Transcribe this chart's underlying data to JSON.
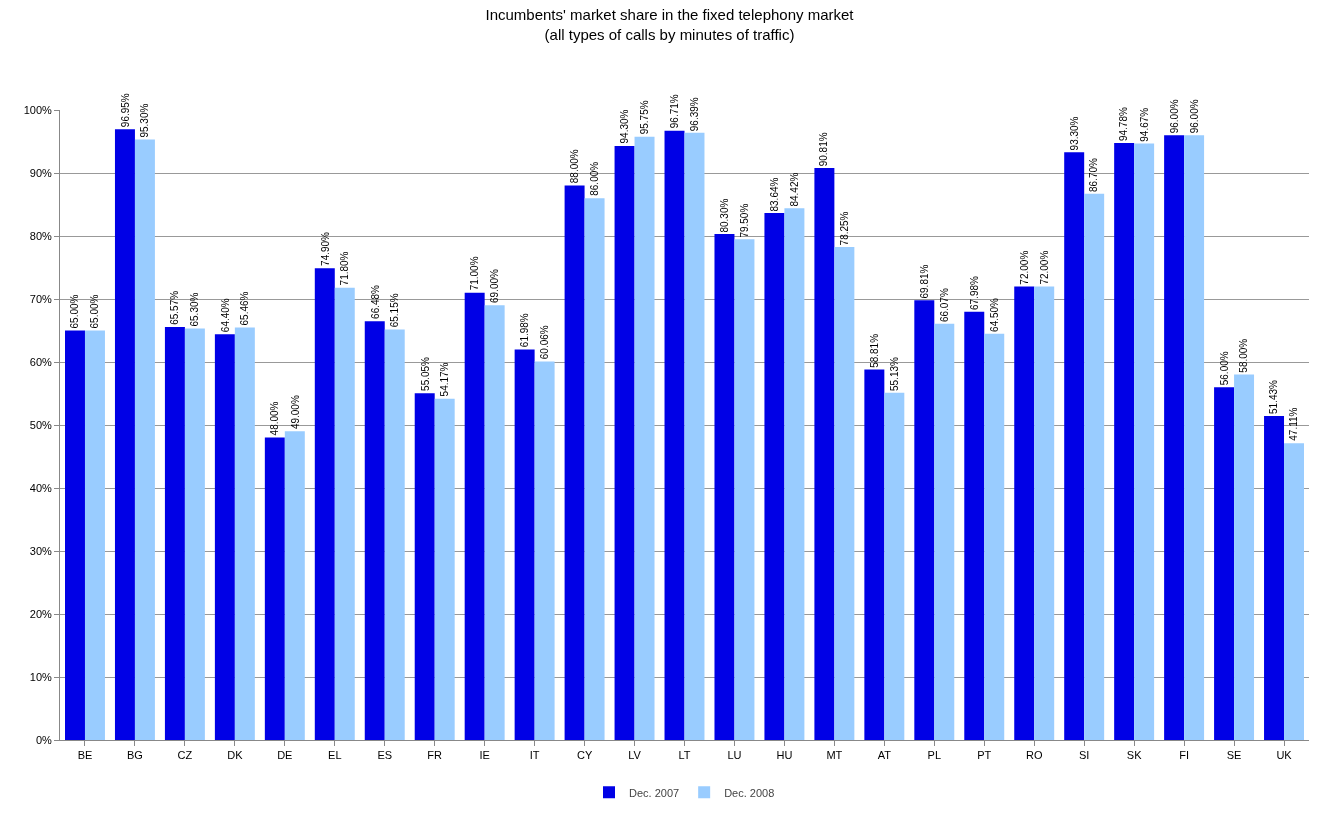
{
  "chart_data": {
    "type": "bar",
    "title": "Incumbents' market share in the fixed telephony market\n(all types of calls by minutes of traffic)",
    "categories": [
      "BE",
      "BG",
      "CZ",
      "DK",
      "DE",
      "EL",
      "ES",
      "FR",
      "IE",
      "IT",
      "CY",
      "LV",
      "LT",
      "LU",
      "HU",
      "MT",
      "AT",
      "PL",
      "PT",
      "RO",
      "SI",
      "SK",
      "FI",
      "SE",
      "UK"
    ],
    "series": [
      {
        "name": "Dec. 2007",
        "color": "#0000e6",
        "values": [
          65.0,
          96.95,
          65.57,
          64.4,
          48.0,
          74.9,
          66.48,
          55.05,
          71.0,
          61.98,
          88.0,
          94.3,
          96.71,
          80.3,
          83.64,
          90.81,
          58.81,
          69.81,
          67.98,
          72.0,
          93.3,
          94.78,
          96.0,
          56.0,
          51.43
        ],
        "value_labels": [
          "65.00%",
          "96.95%",
          "65.57%",
          "64.40%",
          "48.00%",
          "74.90%",
          "66.48%",
          "55.05%",
          "71.00%",
          "61.98%",
          "88.00%",
          "94.30%",
          "96.71%",
          "80.30%",
          "83.64%",
          "90.81%",
          "58.81%",
          "69.81%",
          "67.98%",
          "72.00%",
          "93.30%",
          "94.78%",
          "96.00%",
          "56.00%",
          "51.43%"
        ]
      },
      {
        "name": "Dec. 2008",
        "color": "#99ccff",
        "values": [
          65.0,
          95.3,
          65.3,
          65.46,
          49.0,
          71.8,
          65.15,
          54.17,
          69.0,
          60.06,
          86.0,
          95.75,
          96.39,
          79.5,
          84.42,
          78.25,
          55.13,
          66.07,
          64.5,
          72.0,
          86.7,
          94.67,
          96.0,
          58.0,
          47.11
        ],
        "value_labels": [
          "65.00%",
          "95.30%",
          "65.30%",
          "65.46%",
          "49.00%",
          "71.80%",
          "65.15%",
          "54.17%",
          "69.00%",
          "60.06%",
          "86.00%",
          "95.75%",
          "96.39%",
          "79.50%",
          "84.42%",
          "78.25%",
          "55.13%",
          "66.07%",
          "64.50%",
          "72.00%",
          "86.70%",
          "94.67%",
          "96.00%",
          "58.00%",
          "47.11%"
        ]
      }
    ],
    "ylim": [
      0,
      100
    ],
    "yticks": [
      {
        "value": 0,
        "label": "0%"
      },
      {
        "value": 10,
        "label": "10%"
      },
      {
        "value": 20,
        "label": "20%"
      },
      {
        "value": 30,
        "label": "30%"
      },
      {
        "value": 40,
        "label": "40%"
      },
      {
        "value": 50,
        "label": "50%"
      },
      {
        "value": 60,
        "label": "60%"
      },
      {
        "value": 70,
        "label": "70%"
      },
      {
        "value": 80,
        "label": "80%"
      },
      {
        "value": 90,
        "label": "90%"
      },
      {
        "value": 100,
        "label": "100%"
      }
    ],
    "grid": "y",
    "legend": "bottom"
  }
}
